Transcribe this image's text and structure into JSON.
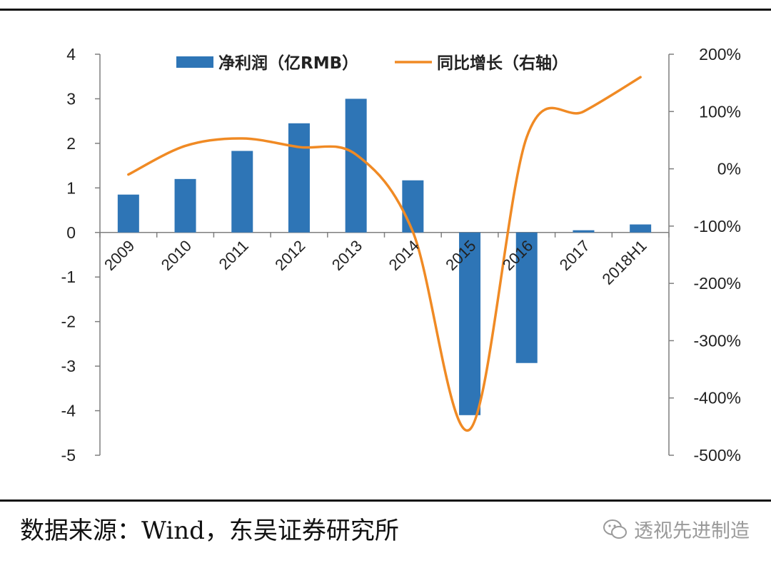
{
  "chart_data": {
    "type": "bar+line",
    "categories": [
      "2009",
      "2010",
      "2011",
      "2012",
      "2013",
      "2014",
      "2015",
      "2016",
      "2017",
      "2018H1"
    ],
    "series": [
      {
        "name": "净利润（亿RMB）",
        "type": "bar",
        "axis": "left",
        "color": "#2E75B6",
        "values": [
          0.85,
          1.2,
          1.83,
          2.45,
          3.0,
          1.17,
          -4.1,
          -2.93,
          0.05,
          0.18
        ]
      },
      {
        "name": "同比增长（右轴）",
        "type": "line",
        "axis": "right",
        "color": "#F08A24",
        "values": [
          -10,
          40,
          53,
          38,
          25,
          -110,
          -455,
          55,
          100,
          160
        ]
      }
    ],
    "left_axis": {
      "ylim": [
        -5,
        4
      ],
      "ticks": [
        4,
        3,
        2,
        1,
        0,
        -1,
        -2,
        -3,
        -4,
        -5
      ],
      "tick_labels": [
        "4",
        "3",
        "2",
        "1",
        "0",
        "-1",
        "-2",
        "-3",
        "-4",
        "-5"
      ]
    },
    "right_axis": {
      "ylim": [
        -500,
        200
      ],
      "ticks": [
        200,
        100,
        0,
        -100,
        -200,
        -300,
        -400,
        -500
      ],
      "tick_labels": [
        "200%",
        "100%",
        "0%",
        "-100%",
        "-200%",
        "-300%",
        "-400%",
        "-500%"
      ]
    },
    "legend_position": "top-center",
    "grid": false
  },
  "footer": {
    "source": "数据来源：Wind，东吴证券研究所",
    "watermark": "透视先进制造",
    "watermark_icon": "wechat-icon"
  }
}
